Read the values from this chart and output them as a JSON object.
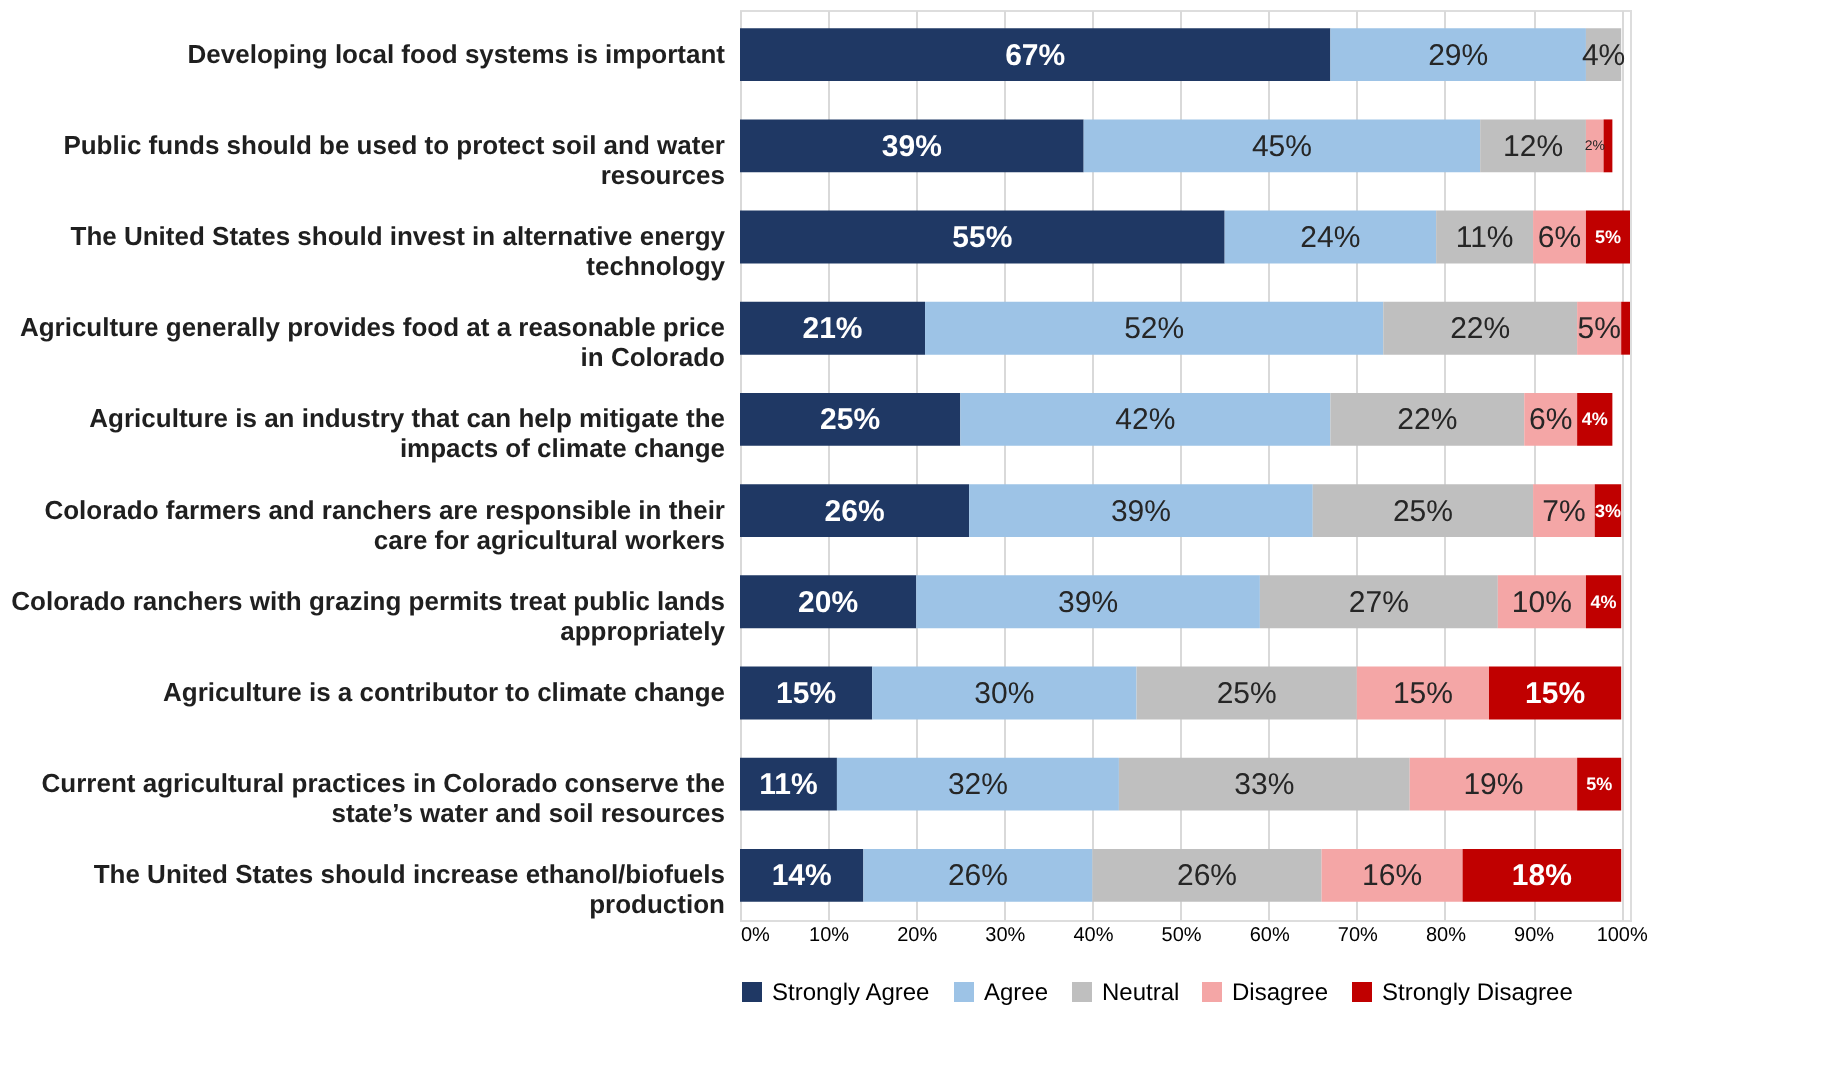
{
  "chart_data": {
    "type": "bar",
    "orientation": "horizontal",
    "stacked": true,
    "categories": [
      "Developing local food systems is important",
      "Public funds should be used to protect soil and water resources",
      "The United States should invest in alternative energy technology",
      "Agriculture generally provides food at a reasonable price in Colorado",
      "Agriculture is an industry that can help mitigate the impacts of climate change",
      "Colorado farmers and ranchers are responsible in their care for agricultural workers",
      "Colorado ranchers with grazing permits treat public lands appropriately",
      "Agriculture is a contributor to climate change",
      "Current agricultural practices in Colorado conserve the state’s water and soil resources",
      "The United States should increase ethanol/biofuels production"
    ],
    "series": [
      {
        "name": "Strongly Agree",
        "color": "#1f3864",
        "values": [
          67,
          39,
          55,
          21,
          25,
          26,
          20,
          15,
          11,
          14
        ],
        "value_labels": [
          "67%",
          "39%",
          "55%",
          "21%",
          "25%",
          "26%",
          "20%",
          "15%",
          "11%",
          "14%"
        ]
      },
      {
        "name": "Agree",
        "color": "#9dc3e6",
        "values": [
          29,
          45,
          24,
          52,
          42,
          39,
          39,
          30,
          32,
          26
        ],
        "value_labels": [
          "29%",
          "45%",
          "24%",
          "52%",
          "42%",
          "39%",
          "39%",
          "30%",
          "32%",
          "26%"
        ]
      },
      {
        "name": "Neutral",
        "color": "#bfbfbf",
        "values": [
          4,
          12,
          11,
          22,
          22,
          25,
          27,
          25,
          33,
          26
        ],
        "value_labels": [
          "4%",
          "12%",
          "11%",
          "22%",
          "22%",
          "25%",
          "27%",
          "25%",
          "33%",
          "26%"
        ]
      },
      {
        "name": "Disagree",
        "color": "#f4a6a6",
        "values": [
          null,
          2,
          6,
          5,
          6,
          7,
          10,
          15,
          19,
          16
        ],
        "value_labels": [
          null,
          "2%",
          "6%",
          "5%",
          "6%",
          "7%",
          "10%",
          "15%",
          "19%",
          "16%"
        ]
      },
      {
        "name": "Strongly Disagree",
        "color": "#c00000",
        "values": [
          null,
          1,
          5,
          1,
          4,
          3,
          4,
          15,
          5,
          18
        ],
        "value_labels": [
          null,
          null,
          "5%",
          null,
          "4%",
          "3%",
          "4%",
          "15%",
          "5%",
          "18%"
        ]
      }
    ],
    "xlim": [
      0,
      101
    ],
    "xticks": [
      {
        "value": 0,
        "label": "0%"
      },
      {
        "value": 10,
        "label": "10%"
      },
      {
        "value": 20,
        "label": "20%"
      },
      {
        "value": 30,
        "label": "30%"
      },
      {
        "value": 40,
        "label": "40%"
      },
      {
        "value": 50,
        "label": "50%"
      },
      {
        "value": 60,
        "label": "60%"
      },
      {
        "value": 70,
        "label": "70%"
      },
      {
        "value": 80,
        "label": "80%"
      },
      {
        "value": 90,
        "label": "90%"
      },
      {
        "value": 100,
        "label": "100%"
      }
    ],
    "grid": "x",
    "legend": "bottom"
  }
}
